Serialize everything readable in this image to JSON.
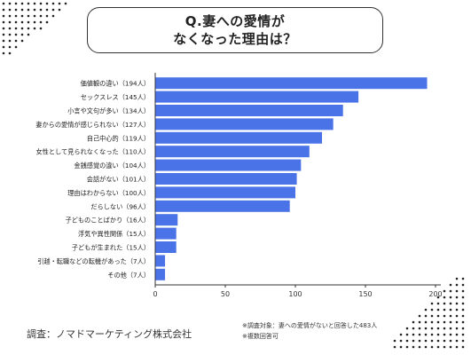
{
  "title": {
    "line1": "Q.妻への愛情が",
    "line2": "なくなった理由は？"
  },
  "colors": {
    "bar": "#4a73e8",
    "axis": "#333333",
    "grid": "#dddddd",
    "dots": "#222222"
  },
  "chart_data": {
    "type": "bar",
    "orientation": "horizontal",
    "categories": [
      "価値観の違い（194人）",
      "セックスレス（145人）",
      "小言や文句が多い（134人）",
      "妻からの愛情が感じられない（127人）",
      "自己中心的（119人）",
      "女性として見られなくなった（110人）",
      "金銭感覚の違い（104人）",
      "会話がない（101人）",
      "理由はわからない（100人）",
      "だらしない（96人）",
      "子どものことばかり（16人）",
      "浮気や異性関係（15人）",
      "子どもが生まれた（15人）",
      "引越・転職などの転機があった（7人）",
      "その他（7人）"
    ],
    "values": [
      194,
      145,
      134,
      127,
      119,
      110,
      104,
      101,
      100,
      96,
      16,
      15,
      15,
      7,
      7
    ],
    "xlim": [
      0,
      200
    ],
    "xticks": [
      "0",
      "50",
      "100",
      "150",
      "200"
    ],
    "grid": false
  },
  "footer": {
    "source": "調査：ノマドマーケティング株式会社",
    "note1": "※調査対象：妻への愛情がないと回答した483人",
    "note2": "※複数回答可"
  }
}
